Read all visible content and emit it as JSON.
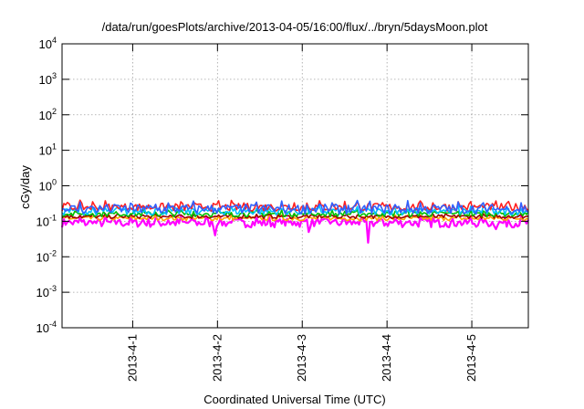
{
  "chart_data": {
    "type": "line",
    "title": "/data/run/goesPlots/archive/2013-04-05/16:00/flux/../bryn/5daysMoon.plot",
    "xlabel": "Coordinated Universal Time (UTC)",
    "ylabel": "cGy/day",
    "yscale": "log",
    "ylim": [
      0.0001,
      10000
    ],
    "xlim": [
      "2013-03-31T04:00",
      "2013-04-05T16:00"
    ],
    "x_ticks": [
      {
        "x": "2013-04-01T00:00",
        "label": "2013-4-1"
      },
      {
        "x": "2013-04-02T00:00",
        "label": "2013-4-2"
      },
      {
        "x": "2013-04-03T00:00",
        "label": "2013-4-3"
      },
      {
        "x": "2013-04-04T00:00",
        "label": "2013-4-4"
      },
      {
        "x": "2013-04-05T00:00",
        "label": "2013-4-5"
      }
    ],
    "y_ticks": [
      {
        "y": 0.0001,
        "base": "10",
        "exp": "-4"
      },
      {
        "y": 0.001,
        "base": "10",
        "exp": "-3"
      },
      {
        "y": 0.01,
        "base": "10",
        "exp": "-2"
      },
      {
        "y": 0.1,
        "base": "10",
        "exp": "-1"
      },
      {
        "y": 1,
        "base": "10",
        "exp": "0"
      },
      {
        "y": 10,
        "base": "10",
        "exp": "1"
      },
      {
        "y": 100,
        "base": "10",
        "exp": "2"
      },
      {
        "y": 1000,
        "base": "10",
        "exp": "3"
      },
      {
        "y": 10000,
        "base": "10",
        "exp": "4"
      }
    ],
    "grid": true,
    "series": [
      {
        "color": "#ff00ff",
        "level": 0.09,
        "spread": 0.25,
        "dips": [
          {
            "x": "2013-04-01T23:30",
            "y": 0.04
          },
          {
            "x": "2013-04-03T02:00",
            "y": 0.05
          },
          {
            "x": "2013-04-03T18:30",
            "y": 0.025
          },
          {
            "x": "2013-04-05T07:00",
            "y": 0.06
          }
        ]
      },
      {
        "color": "#ffa500",
        "level": 0.12,
        "spread": 0.12,
        "dips": []
      },
      {
        "color": "#a00000",
        "level": 0.135,
        "spread": 0.1,
        "dips": []
      },
      {
        "color": "#00c000",
        "level": 0.16,
        "spread": 0.15,
        "dips": []
      },
      {
        "color": "#00c0ff",
        "level": 0.19,
        "spread": 0.2,
        "dips": []
      },
      {
        "color": "#ff2020",
        "level": 0.25,
        "spread": 0.22,
        "dips": []
      },
      {
        "color": "#3060ff",
        "level": 0.22,
        "spread": 0.28,
        "dips": []
      }
    ]
  }
}
